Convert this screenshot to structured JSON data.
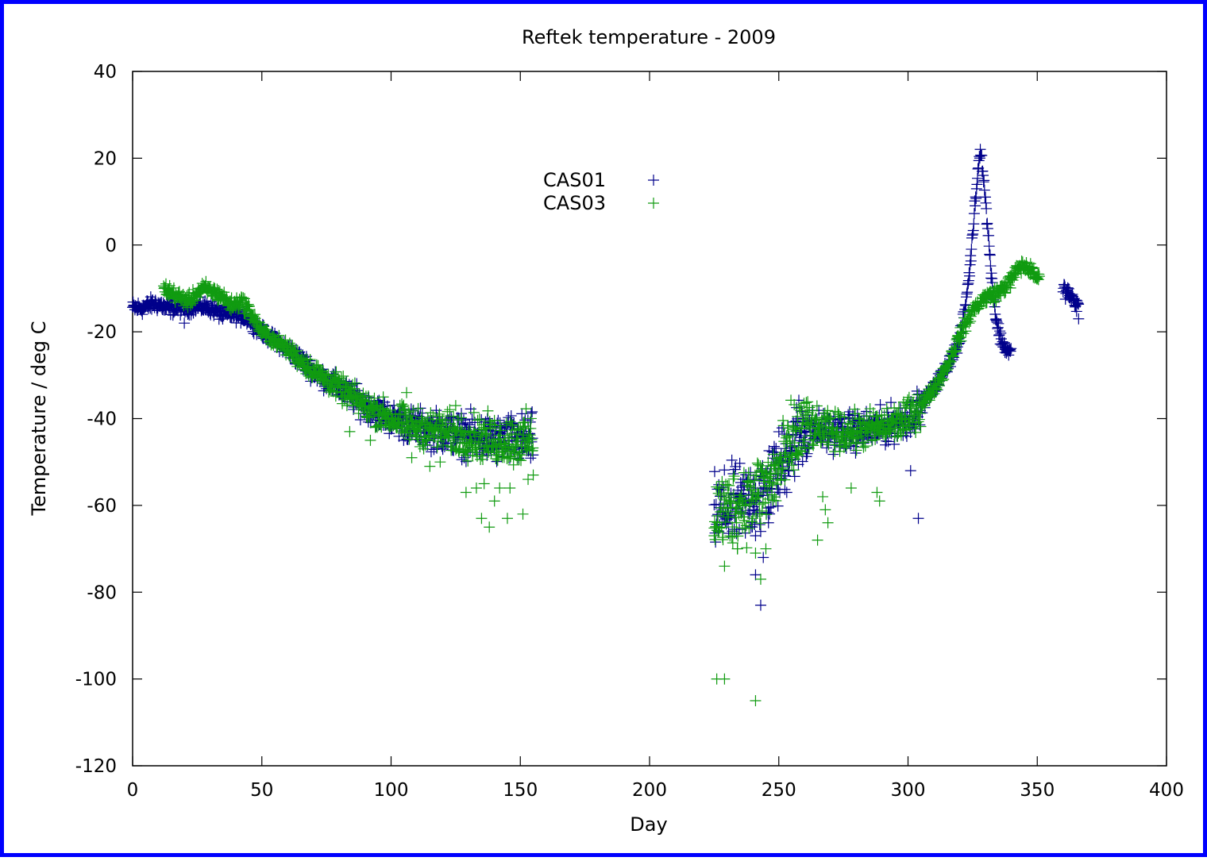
{
  "chart_data": {
    "type": "scatter",
    "title": "Reftek temperature - 2009",
    "xlabel": "Day",
    "ylabel": "Temperature / deg C",
    "xlim": [
      0,
      400
    ],
    "ylim": [
      -120,
      40
    ],
    "xticks": [
      0,
      50,
      100,
      150,
      200,
      250,
      300,
      350,
      400
    ],
    "yticks": [
      -120,
      -100,
      -80,
      -60,
      -40,
      -20,
      0,
      20,
      40
    ],
    "grid": false,
    "legend_position": "top-center",
    "marker": "plus",
    "series": [
      {
        "name": "CAS01",
        "color": "#00008b",
        "segments": [
          {
            "x_start": 0,
            "x_end": 12,
            "points": [
              [
                0,
                -14.5
              ],
              [
                4,
                -14.5
              ],
              [
                8,
                -13.5
              ],
              [
                12,
                -14
              ]
            ]
          },
          {
            "x_start": 12,
            "x_end": 155,
            "points": [
              [
                12,
                -14.5
              ],
              [
                20,
                -14.5
              ],
              [
                25,
                -14
              ],
              [
                30,
                -14.5
              ],
              [
                35,
                -16
              ],
              [
                40,
                -16
              ],
              [
                45,
                -17
              ],
              [
                50,
                -20
              ],
              [
                60,
                -24
              ],
              [
                70,
                -29
              ],
              [
                80,
                -33
              ],
              [
                90,
                -37
              ],
              [
                100,
                -40
              ],
              [
                110,
                -42
              ],
              [
                120,
                -43
              ],
              [
                130,
                -44
              ],
              [
                140,
                -45
              ],
              [
                150,
                -45
              ],
              [
                155,
                -45
              ]
            ]
          },
          {
            "x_start": 225,
            "x_end": 340,
            "points": [
              [
                225,
                -62
              ],
              [
                235,
                -60
              ],
              [
                245,
                -56
              ],
              [
                250,
                -52
              ],
              [
                255,
                -46
              ],
              [
                260,
                -42
              ],
              [
                270,
                -43
              ],
              [
                280,
                -43
              ],
              [
                290,
                -42
              ],
              [
                300,
                -40
              ],
              [
                305,
                -37
              ],
              [
                310,
                -33
              ],
              [
                315,
                -28
              ],
              [
                320,
                -22
              ],
              [
                322,
                -15
              ],
              [
                324,
                -5
              ],
              [
                326,
                10
              ],
              [
                328,
                23
              ],
              [
                330,
                10
              ],
              [
                332,
                -5
              ],
              [
                334,
                -17
              ],
              [
                336,
                -22
              ],
              [
                338,
                -24
              ],
              [
                340,
                -25
              ]
            ]
          },
          {
            "x_start": 360,
            "x_end": 366,
            "points": [
              [
                360,
                -10
              ],
              [
                362,
                -11
              ],
              [
                364,
                -13
              ],
              [
                366,
                -14
              ]
            ]
          }
        ],
        "outliers": [
          [
            20,
            -18
          ],
          [
            241,
            -76
          ],
          [
            243,
            -83
          ],
          [
            241,
            -67
          ],
          [
            244,
            -72
          ],
          [
            246,
            -64
          ],
          [
            243,
            -66
          ],
          [
            301,
            -52
          ],
          [
            304,
            -63
          ],
          [
            366,
            -17
          ]
        ]
      },
      {
        "name": "CAS03",
        "color": "#109b10",
        "segments": [
          {
            "x_start": 12,
            "x_end": 155,
            "points": [
              [
                12,
                -10
              ],
              [
                15,
                -11
              ],
              [
                18,
                -12
              ],
              [
                22,
                -13
              ],
              [
                25,
                -11
              ],
              [
                28,
                -10
              ],
              [
                32,
                -11
              ],
              [
                35,
                -12
              ],
              [
                38,
                -14
              ],
              [
                42,
                -13
              ],
              [
                45,
                -15
              ],
              [
                50,
                -20
              ],
              [
                60,
                -24
              ],
              [
                70,
                -29
              ],
              [
                80,
                -33
              ],
              [
                90,
                -37
              ],
              [
                100,
                -40
              ],
              [
                110,
                -42
              ],
              [
                120,
                -43
              ],
              [
                130,
                -44
              ],
              [
                140,
                -45
              ],
              [
                150,
                -45
              ],
              [
                155,
                -45
              ]
            ]
          },
          {
            "x_start": 225,
            "x_end": 351,
            "points": [
              [
                225,
                -62
              ],
              [
                235,
                -60
              ],
              [
                245,
                -56
              ],
              [
                250,
                -52
              ],
              [
                255,
                -46
              ],
              [
                260,
                -42
              ],
              [
                270,
                -43
              ],
              [
                280,
                -43
              ],
              [
                290,
                -42
              ],
              [
                300,
                -40
              ],
              [
                305,
                -37
              ],
              [
                310,
                -33
              ],
              [
                315,
                -28
              ],
              [
                320,
                -21
              ],
              [
                325,
                -15
              ],
              [
                330,
                -12
              ],
              [
                335,
                -11
              ],
              [
                340,
                -8
              ],
              [
                343,
                -5
              ],
              [
                346,
                -5
              ],
              [
                349,
                -7
              ],
              [
                351,
                -8
              ]
            ]
          }
        ],
        "outliers": [
          [
            226,
            -100
          ],
          [
            229,
            -100
          ],
          [
            241,
            -105
          ],
          [
            225,
            -67
          ],
          [
            229,
            -74
          ],
          [
            234,
            -70
          ],
          [
            241,
            -71
          ],
          [
            243,
            -77
          ],
          [
            245,
            -70
          ],
          [
            138,
            -65
          ],
          [
            135,
            -63
          ],
          [
            145,
            -63
          ],
          [
            151,
            -62
          ],
          [
            140,
            -59
          ],
          [
            136,
            -55
          ],
          [
            129,
            -57
          ],
          [
            133,
            -56
          ],
          [
            142,
            -56
          ],
          [
            146,
            -56
          ],
          [
            265,
            -68
          ],
          [
            269,
            -64
          ],
          [
            268,
            -61
          ],
          [
            289,
            -59
          ],
          [
            288,
            -57
          ],
          [
            278,
            -56
          ],
          [
            267,
            -58
          ],
          [
            84,
            -43
          ],
          [
            92,
            -45
          ],
          [
            106,
            -34
          ],
          [
            115,
            -51
          ],
          [
            108,
            -49
          ],
          [
            119,
            -50
          ],
          [
            125,
            -37
          ],
          [
            153,
            -54
          ],
          [
            155,
            -53
          ]
        ]
      }
    ]
  }
}
